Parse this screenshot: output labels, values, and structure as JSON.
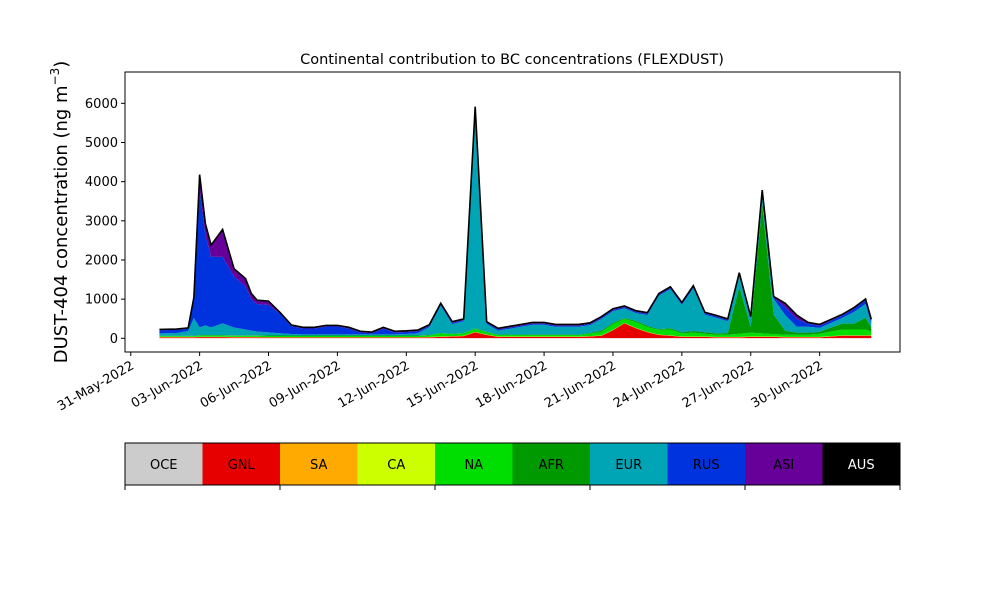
{
  "chart_data": {
    "type": "area",
    "stacked": true,
    "title": "Continental contribution to BC concentrations (FLEXDUST)",
    "ylabel_main": "DUST-404 concentration (ng m",
    "ylabel_exp": "−3",
    "ylabel_close": ")",
    "ylim": [
      -350,
      6800
    ],
    "yticks": [
      0,
      1000,
      2000,
      3000,
      4000,
      5000,
      6000
    ],
    "xlim": [
      "2022-05-30T18:00",
      "2022-07-03T12:00"
    ],
    "xtick_labels": [
      {
        "date": "2022-05-31",
        "label": "31-May-2022"
      },
      {
        "date": "2022-06-03",
        "label": "03-Jun-2022"
      },
      {
        "date": "2022-06-06",
        "label": "06-Jun-2022"
      },
      {
        "date": "2022-06-09",
        "label": "09-Jun-2022"
      },
      {
        "date": "2022-06-12",
        "label": "12-Jun-2022"
      },
      {
        "date": "2022-06-15",
        "label": "15-Jun-2022"
      },
      {
        "date": "2022-06-18",
        "label": "18-Jun-2022"
      },
      {
        "date": "2022-06-21",
        "label": "21-Jun-2022"
      },
      {
        "date": "2022-06-24",
        "label": "24-Jun-2022"
      },
      {
        "date": "2022-06-27",
        "label": "27-Jun-2022"
      },
      {
        "date": "2022-06-30",
        "label": "30-Jun-2022"
      }
    ],
    "x": [
      "2022-06-01T06:00",
      "2022-06-02T00:00",
      "2022-06-02T12:00",
      "2022-06-02T18:00",
      "2022-06-03T00:00",
      "2022-06-03T06:00",
      "2022-06-03T12:00",
      "2022-06-04T00:00",
      "2022-06-04T12:00",
      "2022-06-05T00:00",
      "2022-06-05T06:00",
      "2022-06-05T12:00",
      "2022-06-06T00:00",
      "2022-06-06T12:00",
      "2022-06-07T00:00",
      "2022-06-07T12:00",
      "2022-06-08T00:00",
      "2022-06-08T12:00",
      "2022-06-09T00:00",
      "2022-06-09T12:00",
      "2022-06-10T00:00",
      "2022-06-10T12:00",
      "2022-06-11T00:00",
      "2022-06-11T12:00",
      "2022-06-12T00:00",
      "2022-06-12T12:00",
      "2022-06-13T00:00",
      "2022-06-13T12:00",
      "2022-06-14T00:00",
      "2022-06-14T12:00",
      "2022-06-15T00:00",
      "2022-06-15T12:00",
      "2022-06-16T00:00",
      "2022-06-16T12:00",
      "2022-06-17T00:00",
      "2022-06-17T12:00",
      "2022-06-18T00:00",
      "2022-06-18T12:00",
      "2022-06-19T00:00",
      "2022-06-19T12:00",
      "2022-06-20T00:00",
      "2022-06-20T12:00",
      "2022-06-21T00:00",
      "2022-06-21T12:00",
      "2022-06-22T00:00",
      "2022-06-22T12:00",
      "2022-06-23T00:00",
      "2022-06-23T12:00",
      "2022-06-24T00:00",
      "2022-06-24T12:00",
      "2022-06-25T00:00",
      "2022-06-25T12:00",
      "2022-06-26T00:00",
      "2022-06-26T12:00",
      "2022-06-27T00:00",
      "2022-06-27T12:00",
      "2022-06-28T00:00",
      "2022-06-28T12:00",
      "2022-06-29T00:00",
      "2022-06-29T12:00",
      "2022-06-30T00:00",
      "2022-06-30T12:00",
      "2022-07-01T00:00",
      "2022-07-01T12:00",
      "2022-07-02T00:00",
      "2022-07-02T06:00"
    ],
    "series": [
      {
        "name": "OCE",
        "color": "#c8c8c8",
        "values": [
          5,
          5,
          5,
          5,
          5,
          5,
          5,
          5,
          5,
          5,
          5,
          5,
          5,
          5,
          5,
          5,
          5,
          5,
          5,
          5,
          5,
          5,
          5,
          5,
          5,
          5,
          5,
          5,
          5,
          5,
          5,
          5,
          5,
          5,
          5,
          5,
          5,
          5,
          5,
          5,
          5,
          5,
          5,
          5,
          5,
          5,
          5,
          5,
          5,
          5,
          5,
          5,
          5,
          5,
          5,
          5,
          5,
          5,
          5,
          5,
          5,
          5,
          5,
          5,
          5,
          5
        ]
      },
      {
        "name": "GNL",
        "color": "#e60000",
        "values": [
          20,
          20,
          20,
          20,
          25,
          25,
          25,
          25,
          20,
          20,
          20,
          20,
          15,
          15,
          15,
          15,
          15,
          15,
          15,
          15,
          15,
          15,
          15,
          15,
          15,
          15,
          20,
          30,
          40,
          50,
          150,
          80,
          30,
          30,
          30,
          30,
          30,
          30,
          30,
          30,
          40,
          60,
          200,
          380,
          250,
          150,
          80,
          60,
          30,
          30,
          30,
          20,
          20,
          20,
          30,
          30,
          30,
          20,
          20,
          20,
          20,
          40,
          60,
          60,
          60,
          60
        ]
      },
      {
        "name": "SA",
        "color": "#ffaa00",
        "values": [
          5,
          5,
          5,
          5,
          5,
          5,
          5,
          5,
          5,
          5,
          5,
          5,
          5,
          5,
          5,
          5,
          5,
          5,
          5,
          5,
          5,
          5,
          5,
          5,
          5,
          5,
          5,
          5,
          5,
          5,
          5,
          5,
          5,
          5,
          5,
          5,
          5,
          5,
          5,
          5,
          5,
          5,
          5,
          5,
          5,
          5,
          5,
          5,
          5,
          5,
          5,
          5,
          5,
          5,
          5,
          5,
          5,
          5,
          5,
          5,
          5,
          5,
          5,
          5,
          5,
          5
        ]
      },
      {
        "name": "CA",
        "color": "#ccff00",
        "values": [
          5,
          5,
          5,
          5,
          5,
          5,
          5,
          5,
          5,
          5,
          5,
          5,
          5,
          5,
          5,
          5,
          5,
          5,
          5,
          5,
          5,
          5,
          5,
          5,
          5,
          5,
          5,
          5,
          5,
          5,
          5,
          5,
          5,
          5,
          5,
          5,
          5,
          5,
          5,
          5,
          5,
          5,
          5,
          5,
          5,
          5,
          5,
          5,
          5,
          5,
          5,
          5,
          5,
          5,
          5,
          5,
          5,
          5,
          5,
          5,
          5,
          5,
          5,
          5,
          5,
          5
        ]
      },
      {
        "name": "NA",
        "color": "#00dd00",
        "values": [
          20,
          20,
          20,
          20,
          30,
          30,
          30,
          30,
          30,
          30,
          30,
          30,
          30,
          30,
          30,
          30,
          30,
          30,
          30,
          30,
          30,
          30,
          30,
          30,
          30,
          30,
          40,
          80,
          50,
          60,
          80,
          60,
          40,
          40,
          40,
          40,
          40,
          40,
          40,
          40,
          60,
          90,
          150,
          100,
          150,
          120,
          120,
          150,
          80,
          100,
          70,
          60,
          60,
          80,
          100,
          80,
          60,
          60,
          60,
          60,
          80,
          120,
          150,
          150,
          150,
          100
        ]
      },
      {
        "name": "AFR",
        "color": "#009900",
        "values": [
          10,
          10,
          10,
          10,
          10,
          10,
          10,
          10,
          10,
          10,
          10,
          10,
          10,
          10,
          10,
          10,
          10,
          10,
          10,
          10,
          10,
          10,
          10,
          10,
          10,
          10,
          10,
          10,
          10,
          10,
          10,
          10,
          10,
          10,
          10,
          10,
          10,
          10,
          10,
          10,
          20,
          30,
          30,
          20,
          30,
          30,
          20,
          30,
          30,
          40,
          40,
          30,
          40,
          1200,
          150,
          3300,
          500,
          100,
          50,
          50,
          50,
          100,
          150,
          150,
          300,
          100
        ]
      },
      {
        "name": "EUR",
        "color": "#00a5b5",
        "values": [
          60,
          70,
          120,
          450,
          200,
          250,
          200,
          300,
          200,
          150,
          120,
          100,
          80,
          60,
          40,
          30,
          30,
          30,
          30,
          30,
          30,
          30,
          30,
          30,
          40,
          60,
          200,
          700,
          250,
          300,
          5600,
          200,
          100,
          150,
          200,
          250,
          250,
          200,
          200,
          200,
          200,
          300,
          300,
          250,
          200,
          280,
          850,
          1000,
          700,
          1100,
          450,
          400,
          300,
          300,
          200,
          300,
          400,
          400,
          150,
          150,
          100,
          120,
          150,
          300,
          350,
          100
        ]
      },
      {
        "name": "RUS",
        "color": "#0033dd",
        "values": [
          80,
          80,
          60,
          500,
          3500,
          2300,
          1800,
          1700,
          1300,
          1100,
          800,
          700,
          700,
          500,
          200,
          150,
          150,
          200,
          200,
          150,
          50,
          30,
          150,
          50,
          50,
          50,
          30,
          30,
          30,
          30,
          30,
          30,
          30,
          30,
          30,
          30,
          30,
          30,
          30,
          30,
          30,
          30,
          30,
          30,
          30,
          30,
          30,
          30,
          30,
          30,
          30,
          30,
          30,
          30,
          30,
          30,
          30,
          200,
          200,
          80,
          60,
          60,
          60,
          80,
          100,
          80
        ]
      },
      {
        "name": "ASI",
        "color": "#660099",
        "values": [
          20,
          20,
          20,
          30,
          400,
          300,
          300,
          700,
          200,
          200,
          150,
          100,
          100,
          30,
          30,
          30,
          30,
          30,
          30,
          30,
          30,
          30,
          30,
          30,
          30,
          30,
          30,
          30,
          30,
          30,
          30,
          30,
          30,
          30,
          30,
          30,
          30,
          30,
          30,
          30,
          30,
          30,
          30,
          30,
          30,
          30,
          30,
          30,
          30,
          30,
          30,
          30,
          30,
          30,
          30,
          30,
          30,
          100,
          100,
          30,
          30,
          30,
          30,
          30,
          30,
          30
        ]
      },
      {
        "name": "AUS",
        "color": "#000000",
        "values": [
          0,
          0,
          0,
          0,
          0,
          0,
          0,
          0,
          0,
          0,
          0,
          0,
          0,
          0,
          0,
          0,
          0,
          0,
          0,
          0,
          0,
          0,
          0,
          0,
          0,
          0,
          0,
          0,
          0,
          0,
          0,
          0,
          0,
          0,
          0,
          0,
          0,
          0,
          0,
          0,
          0,
          0,
          0,
          0,
          0,
          0,
          0,
          0,
          0,
          0,
          0,
          0,
          0,
          0,
          0,
          0,
          0,
          0,
          0,
          0,
          0,
          0,
          0,
          0,
          0,
          0
        ]
      }
    ],
    "grid": false
  },
  "colorbar": {
    "entries": [
      {
        "label": "OCE",
        "color": "#cccccc",
        "text_color": "#000000"
      },
      {
        "label": "GNL",
        "color": "#e60000",
        "text_color": "#000000"
      },
      {
        "label": "SA",
        "color": "#ffaa00",
        "text_color": "#000000"
      },
      {
        "label": "CA",
        "color": "#ccff00",
        "text_color": "#000000"
      },
      {
        "label": "NA",
        "color": "#00dd00",
        "text_color": "#000000"
      },
      {
        "label": "AFR",
        "color": "#009900",
        "text_color": "#000000"
      },
      {
        "label": "EUR",
        "color": "#00a5b5",
        "text_color": "#000000"
      },
      {
        "label": "RUS",
        "color": "#0033dd",
        "text_color": "#000000"
      },
      {
        "label": "ASI",
        "color": "#660099",
        "text_color": "#000000"
      },
      {
        "label": "AUS",
        "color": "#000000",
        "text_color": "#ffffff"
      }
    ]
  }
}
